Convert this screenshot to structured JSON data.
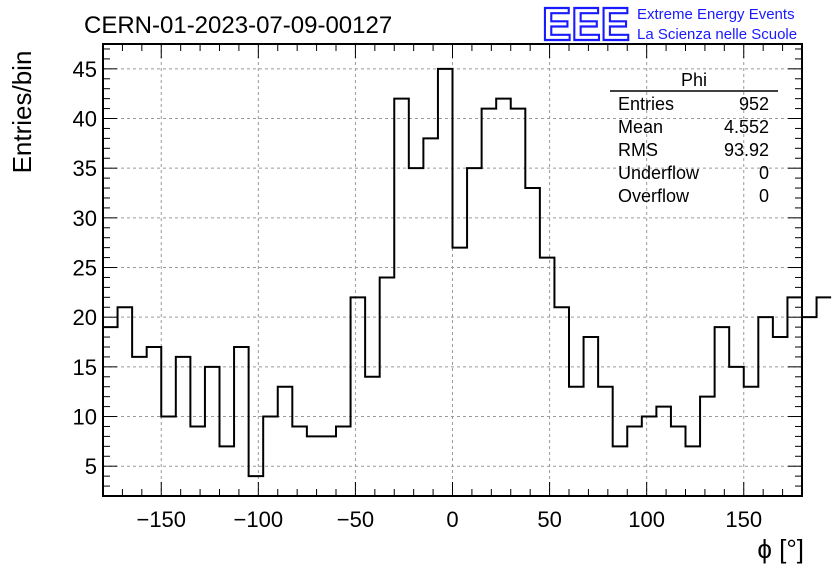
{
  "title": "CERN-01-2023-07-09-00127",
  "logo": {
    "mark": "EEE",
    "line1": "Extreme Energy Events",
    "line2": "La Scienza nelle Scuole",
    "color": "#1a1aff"
  },
  "stats_box": {
    "title": "Phi",
    "rows": [
      {
        "label": "Entries",
        "value": "952"
      },
      {
        "label": "Mean",
        "value": "4.552"
      },
      {
        "label": "RMS",
        "value": "93.92"
      },
      {
        "label": "Underflow",
        "value": "0"
      },
      {
        "label": "Overflow",
        "value": "0"
      }
    ]
  },
  "chart_data": {
    "type": "bar",
    "style": "step-histogram",
    "title": "CERN-01-2023-07-09-00127",
    "xlabel": "ϕ [°]",
    "ylabel": "Entries/bin",
    "xlim": [
      -180,
      180
    ],
    "ylim": [
      2,
      47.5
    ],
    "grid": true,
    "xticks": [
      -150,
      -100,
      -50,
      0,
      50,
      100,
      150
    ],
    "xtick_labels": [
      "−150",
      "−100",
      "−50",
      "0",
      "50",
      "100",
      "150"
    ],
    "yticks": [
      5,
      10,
      15,
      20,
      25,
      30,
      35,
      40,
      45
    ],
    "ytick_labels": [
      "5",
      "10",
      "15",
      "20",
      "25",
      "30",
      "35",
      "40",
      "45"
    ],
    "bin_edges_start": -180,
    "bin_width": 7.5,
    "values": [
      19,
      21,
      16,
      17,
      10,
      16,
      9,
      15,
      7,
      17,
      4,
      10,
      13,
      9,
      8,
      8,
      9,
      22,
      14,
      24,
      42,
      35,
      38,
      45,
      27,
      35,
      41,
      42,
      41,
      33,
      26,
      21,
      13,
      18,
      13,
      7,
      9,
      10,
      11,
      9,
      7,
      12,
      19,
      15,
      13,
      20,
      18,
      22,
      20,
      22
    ]
  }
}
